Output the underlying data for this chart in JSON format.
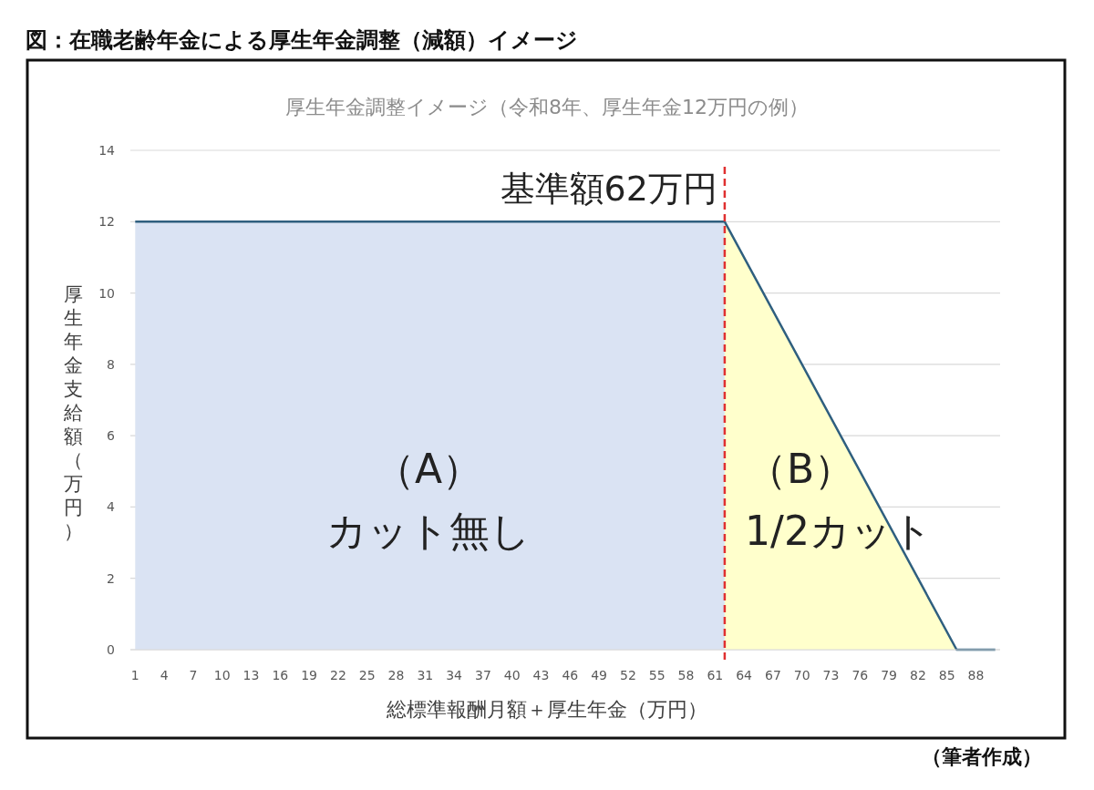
{
  "chart_data": {
    "type": "line",
    "title": "図：在職老齢年金による厚生年金調整（減額）イメージ",
    "subtitle": "厚生年金調整イメージ（令和8年、厚生年金12万円の例）",
    "xlabel": "総標準報酬月額＋厚生年金（万円）",
    "ylabel": "厚生年金支給額（万円）",
    "series": [
      {
        "type": "area",
        "color": "#dae3f3",
        "x": [
          1,
          62
        ],
        "values": [
          12,
          12
        ]
      },
      {
        "type": "area",
        "color": "#ffffcc",
        "x": [
          62,
          86
        ],
        "values": [
          12,
          0
        ]
      },
      {
        "color": "#2f5f7f",
        "x": [
          1,
          62,
          86,
          90
        ],
        "values": [
          12,
          12,
          0,
          0
        ]
      }
    ],
    "xlim": [
      0.5,
      90.5
    ],
    "xticks": [
      1,
      4,
      7,
      10,
      13,
      16,
      19,
      22,
      25,
      28,
      31,
      34,
      37,
      40,
      43,
      46,
      49,
      52,
      55,
      58,
      61,
      64,
      67,
      70,
      73,
      76,
      79,
      82,
      85,
      88
    ],
    "ylim": [
      0,
      14
    ],
    "yticks": [
      0,
      2,
      4,
      6,
      8,
      10,
      12,
      14
    ],
    "grid": "y",
    "marker": "none",
    "ref_lines": [
      {
        "axis": "x",
        "value": 62,
        "label": "基準額62万円",
        "color": "#e03030",
        "line_style": "dashed"
      }
    ],
    "annotations": [
      "（A）",
      "カット無し",
      "（B）",
      "1/2カット",
      "（筆者作成）"
    ]
  }
}
